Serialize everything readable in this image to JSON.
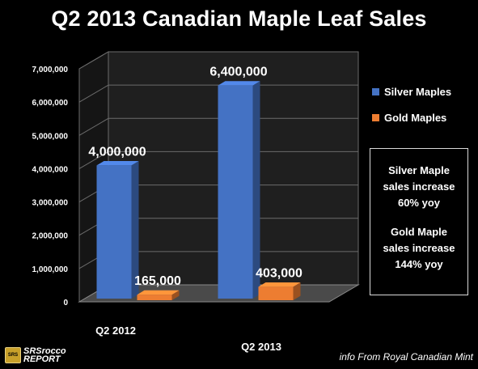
{
  "title": "Q2 2013 Canadian Maple Leaf Sales",
  "chart_data": {
    "type": "bar",
    "title": "Q2 2013 Canadian Maple Leaf Sales",
    "categories": [
      "Q2 2012",
      "Q2 2013"
    ],
    "series": [
      {
        "name": "Silver Maples",
        "values": [
          4000000,
          6400000
        ],
        "labels": [
          "4,000,000",
          "6,400,000"
        ],
        "color": "#4472c4"
      },
      {
        "name": "Gold Maples",
        "values": [
          165000,
          403000
        ],
        "labels": [
          "165,000",
          "403,000"
        ],
        "color": "#ed7d31"
      }
    ],
    "ylim": [
      0,
      7000000
    ],
    "yticks": [
      0,
      1000000,
      2000000,
      3000000,
      4000000,
      5000000,
      6000000,
      7000000
    ],
    "ytick_labels": [
      "0",
      "1,000,000",
      "2,000,000",
      "3,000,000",
      "4,000,000",
      "5,000,000",
      "6,000,000",
      "7,000,000"
    ],
    "xlabel": "",
    "ylabel": "",
    "grid": true,
    "legend": "right",
    "style": "3d-column"
  },
  "note": {
    "line1": "Silver Maple",
    "line2": "sales increase",
    "line3": "60% yoy",
    "line4": "Gold Maple",
    "line5": "sales increase",
    "line6": "144% yoy"
  },
  "brand": {
    "badge": "SRS",
    "line1": "SRSrocco",
    "line2": "REPORT"
  },
  "credit": "info From Royal Canadian Mint"
}
